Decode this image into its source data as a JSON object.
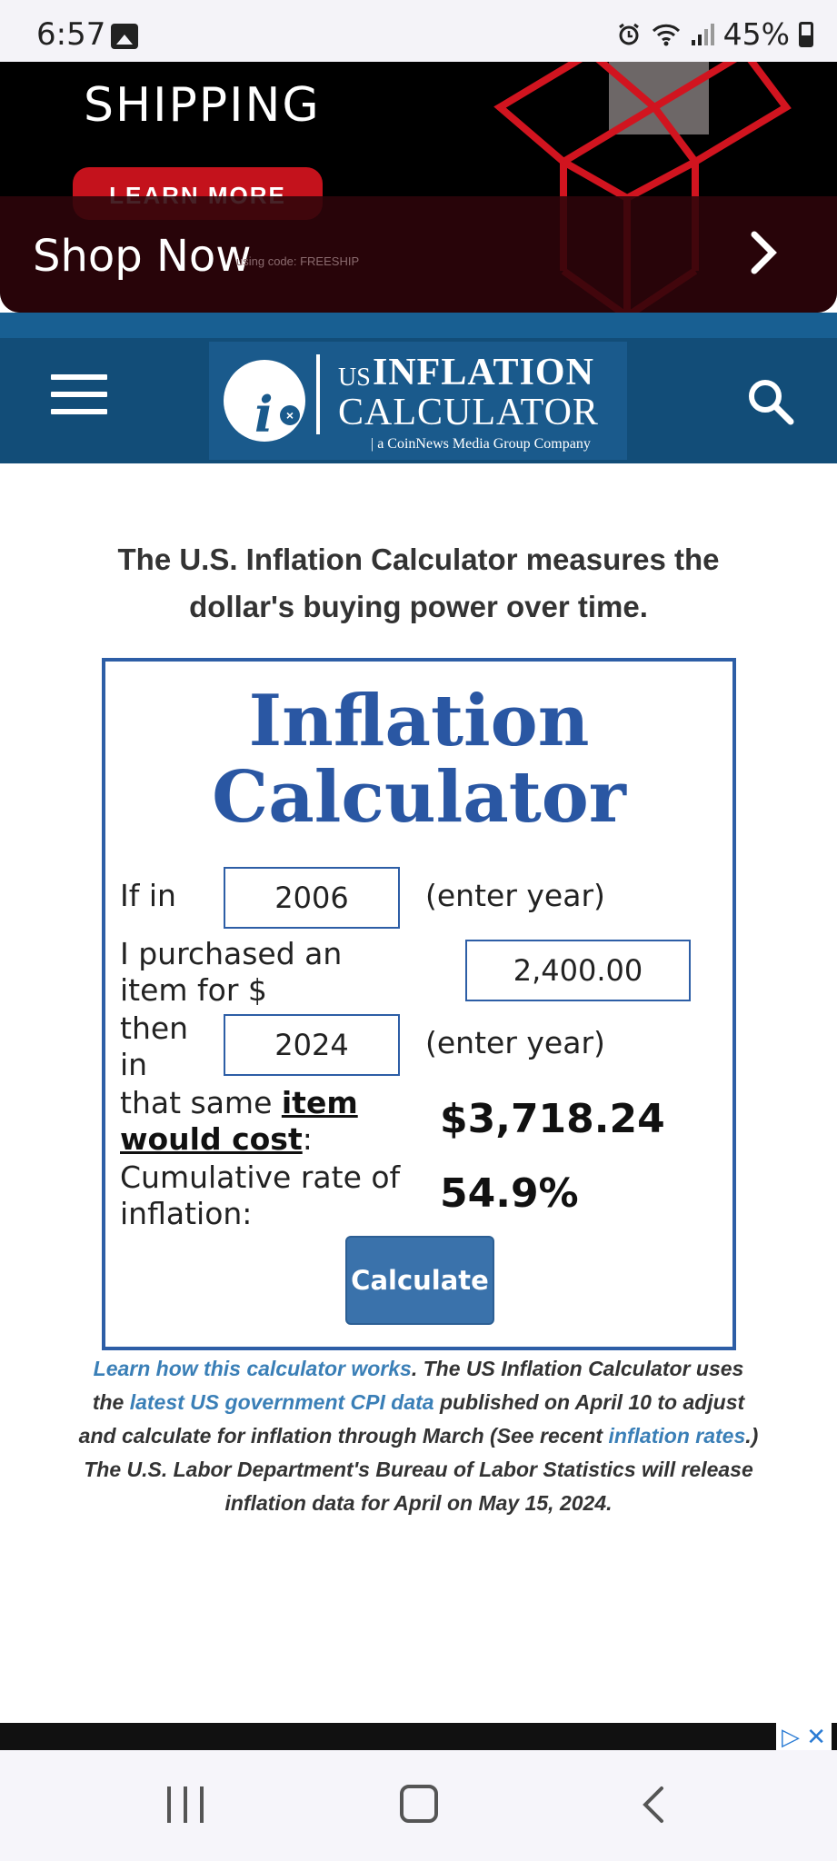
{
  "status_bar": {
    "time": "6:57",
    "battery": "45%"
  },
  "ad": {
    "headline": "SHIPPING",
    "learn_more": "LEARN MORE",
    "shop_now": "Shop Now",
    "code_text": "using code: FREESHIP"
  },
  "header": {
    "logo_us": "US",
    "logo_inflation": "INFLATION",
    "logo_calculator": "CALCULATOR",
    "logo_tagline": "| a CoinNews Media Group Company"
  },
  "intro": "The U.S. Inflation Calculator measures the dollar's buying power over time.",
  "calculator": {
    "title_line1": "Inflation",
    "title_line2": "Calculator",
    "if_in_label": "If in",
    "start_year": "2006",
    "enter_year_hint": "(enter year)",
    "purchased_label": "I purchased an item for $",
    "amount": "2,400.00",
    "then_in_label": "then in",
    "end_year": "2024",
    "cost_label_prefix": "that same ",
    "cost_label_link": "item would cost",
    "cost_label_suffix": ":",
    "cost_value": "$3,718.24",
    "cumulative_label": "Cumulative rate of inflation:",
    "cumulative_value": "54.9%",
    "calculate_button": "Calculate"
  },
  "note": {
    "link1": "Learn how this calculator works",
    "text1": ". The US Inflation Calculator uses the ",
    "link2": "latest US government CPI data",
    "text2": " published on April 10 to adjust and calculate for inflation through March (See recent ",
    "link3": "inflation rates",
    "text3": ".) The U.S. Labor Department's Bureau of Labor Statistics will release inflation data for April on May 15, 2024."
  },
  "colors": {
    "header_bg": "#124d78",
    "accent": "#2a57a3",
    "button": "#3a72ab",
    "link": "#3a7fb7"
  }
}
